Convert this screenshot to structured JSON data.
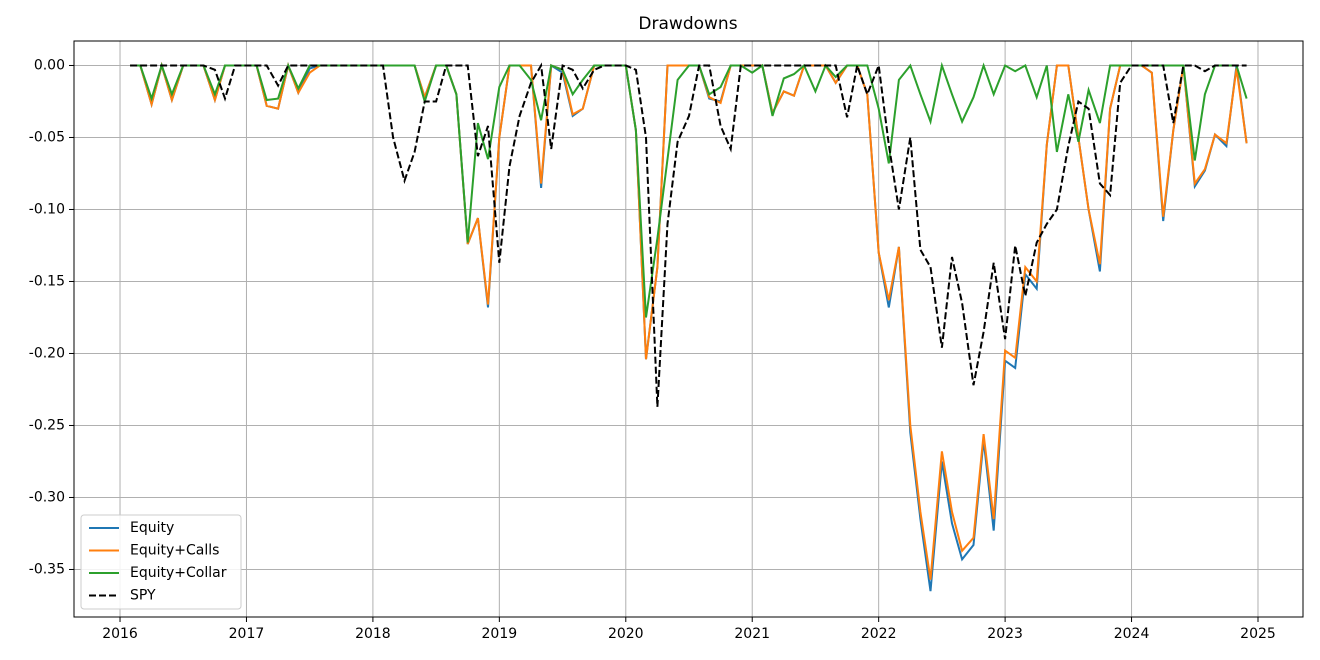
{
  "chart_data": {
    "type": "line",
    "title": "Drawdowns",
    "x": [
      2016.08,
      2016.16,
      2016.25,
      2016.33,
      2016.41,
      2016.5,
      2016.58,
      2016.66,
      2016.75,
      2016.83,
      2016.91,
      2017,
      2017.08,
      2017.16,
      2017.25,
      2017.33,
      2017.41,
      2017.5,
      2017.58,
      2017.66,
      2017.75,
      2017.83,
      2017.91,
      2018,
      2018.08,
      2018.16,
      2018.25,
      2018.33,
      2018.41,
      2018.5,
      2018.58,
      2018.66,
      2018.75,
      2018.83,
      2018.91,
      2019,
      2019.08,
      2019.16,
      2019.25,
      2019.33,
      2019.41,
      2019.5,
      2019.58,
      2019.66,
      2019.75,
      2019.83,
      2019.91,
      2020,
      2020.08,
      2020.16,
      2020.25,
      2020.33,
      2020.41,
      2020.5,
      2020.58,
      2020.66,
      2020.75,
      2020.83,
      2020.91,
      2021,
      2021.08,
      2021.16,
      2021.25,
      2021.33,
      2021.41,
      2021.5,
      2021.58,
      2021.66,
      2021.75,
      2021.83,
      2021.91,
      2022,
      2022.08,
      2022.16,
      2022.25,
      2022.33,
      2022.41,
      2022.5,
      2022.58,
      2022.66,
      2022.75,
      2022.83,
      2022.91,
      2023,
      2023.08,
      2023.16,
      2023.25,
      2023.33,
      2023.41,
      2023.5,
      2023.58,
      2023.66,
      2023.75,
      2023.83,
      2023.91,
      2024,
      2024.08,
      2024.16,
      2024.25,
      2024.33,
      2024.41,
      2024.5,
      2024.58,
      2024.66,
      2024.75,
      2024.83,
      2024.91
    ],
    "series": [
      {
        "name": "Equity",
        "color": "#1f77b4",
        "line_style": "solid",
        "values": [
          0,
          0,
          -0.027,
          0,
          -0.024,
          0,
          0,
          0,
          -0.024,
          0,
          0,
          0,
          0,
          -0.028,
          -0.03,
          0,
          -0.019,
          -0.002,
          0,
          0,
          0,
          0,
          0,
          0,
          0,
          0,
          0,
          0,
          -0.022,
          0,
          0,
          -0.02,
          -0.124,
          -0.106,
          -0.168,
          -0.05,
          0,
          0,
          0,
          -0.085,
          0,
          -0.005,
          -0.035,
          -0.03,
          0,
          0,
          0,
          0,
          -0.045,
          -0.204,
          -0.14,
          0,
          0,
          0,
          0,
          -0.023,
          -0.025,
          0,
          0,
          0,
          0,
          -0.033,
          -0.018,
          -0.021,
          0,
          0,
          0,
          -0.012,
          0,
          0,
          -0.02,
          -0.13,
          -0.168,
          -0.126,
          -0.255,
          -0.315,
          -0.365,
          -0.275,
          -0.318,
          -0.343,
          -0.333,
          -0.26,
          -0.323,
          -0.205,
          -0.21,
          -0.145,
          -0.155,
          -0.055,
          0,
          0,
          -0.05,
          -0.1,
          -0.143,
          -0.03,
          0,
          0,
          0,
          -0.005,
          -0.108,
          -0.045,
          0,
          -0.084,
          -0.073,
          -0.048,
          -0.056,
          0,
          -0.054
        ]
      },
      {
        "name": "Equity+Calls",
        "color": "#ff7f0e",
        "line_style": "solid",
        "values": [
          0,
          0,
          -0.027,
          0,
          -0.024,
          0,
          0,
          0,
          -0.024,
          0,
          0,
          0,
          0,
          -0.028,
          -0.03,
          0,
          -0.019,
          -0.005,
          0,
          0,
          0,
          0,
          0,
          0,
          0,
          0,
          0,
          0,
          -0.022,
          0,
          0,
          -0.02,
          -0.124,
          -0.106,
          -0.166,
          -0.05,
          0,
          0,
          0,
          -0.082,
          0,
          -0.003,
          -0.034,
          -0.03,
          0,
          0,
          0,
          0,
          -0.045,
          -0.204,
          -0.14,
          0,
          0,
          0,
          0,
          -0.022,
          -0.026,
          0,
          0,
          0,
          0,
          -0.033,
          -0.018,
          -0.021,
          0,
          0,
          0,
          -0.012,
          0,
          0,
          -0.02,
          -0.13,
          -0.163,
          -0.126,
          -0.25,
          -0.31,
          -0.357,
          -0.268,
          -0.31,
          -0.337,
          -0.328,
          -0.256,
          -0.315,
          -0.198,
          -0.203,
          -0.14,
          -0.15,
          -0.055,
          0,
          0,
          -0.05,
          -0.1,
          -0.138,
          -0.03,
          0,
          0,
          0,
          -0.005,
          -0.105,
          -0.045,
          0,
          -0.082,
          -0.072,
          -0.048,
          -0.054,
          -0.002,
          -0.054
        ]
      },
      {
        "name": "Equity+Collar",
        "color": "#2ca02c",
        "line_style": "solid",
        "values": [
          0,
          0,
          -0.023,
          0,
          -0.02,
          0,
          0,
          0,
          -0.02,
          0,
          0,
          0,
          0,
          -0.024,
          -0.023,
          0,
          -0.016,
          0,
          0,
          0,
          0,
          0,
          0,
          0,
          0,
          0,
          0,
          0,
          -0.025,
          0,
          0,
          -0.02,
          -0.123,
          -0.04,
          -0.065,
          -0.015,
          0,
          0,
          -0.01,
          -0.038,
          0,
          -0.003,
          -0.02,
          -0.01,
          0,
          0,
          0,
          0,
          -0.045,
          -0.175,
          -0.12,
          -0.065,
          -0.01,
          0,
          0,
          -0.02,
          -0.015,
          0,
          0,
          -0.005,
          0,
          -0.035,
          -0.009,
          -0.006,
          0,
          -0.018,
          0,
          -0.008,
          0,
          0,
          0,
          -0.03,
          -0.068,
          -0.01,
          0,
          -0.02,
          -0.039,
          0,
          -0.02,
          -0.039,
          -0.022,
          0,
          -0.02,
          0,
          -0.004,
          0,
          -0.022,
          0,
          -0.06,
          -0.02,
          -0.053,
          -0.017,
          -0.04,
          0,
          0,
          0,
          0,
          0,
          0,
          0,
          0,
          -0.066,
          -0.02,
          0,
          0,
          0,
          -0.023
        ]
      },
      {
        "name": "SPY",
        "color": "#000000",
        "line_style": "dashed",
        "values": [
          0,
          0,
          0,
          0,
          0,
          0,
          0,
          0,
          -0.003,
          -0.023,
          0,
          0,
          0,
          0,
          -0.014,
          0,
          0,
          0,
          0,
          0,
          0,
          0,
          0,
          0,
          0,
          -0.05,
          -0.08,
          -0.06,
          -0.025,
          -0.025,
          0,
          0,
          0,
          -0.063,
          -0.042,
          -0.137,
          -0.07,
          -0.035,
          -0.012,
          0,
          -0.058,
          0,
          -0.003,
          -0.016,
          -0.003,
          0,
          0,
          0,
          -0.003,
          -0.05,
          -0.237,
          -0.11,
          -0.053,
          -0.035,
          0,
          0,
          -0.042,
          -0.058,
          0,
          0,
          0,
          0,
          0,
          0,
          0,
          0,
          0,
          0,
          -0.036,
          0,
          -0.02,
          0,
          -0.055,
          -0.1,
          -0.05,
          -0.128,
          -0.14,
          -0.196,
          -0.133,
          -0.165,
          -0.222,
          -0.185,
          -0.137,
          -0.19,
          -0.125,
          -0.16,
          -0.123,
          -0.11,
          -0.1,
          -0.056,
          -0.025,
          -0.03,
          -0.082,
          -0.09,
          -0.012,
          0,
          0,
          0,
          0,
          -0.04,
          0,
          0,
          -0.004,
          0,
          0,
          0,
          0
        ]
      }
    ],
    "xlim": [
      2015.636,
      2025.356
    ],
    "xticks": [
      2016,
      2017,
      2018,
      2019,
      2020,
      2021,
      2022,
      2023,
      2024,
      2025
    ],
    "ylim": [
      -0.383,
      0.017
    ],
    "yticks": [
      {
        "value": 0,
        "label": "0.00"
      },
      {
        "value": -0.05,
        "label": "-0.05"
      },
      {
        "value": -0.1,
        "label": "-0.10"
      },
      {
        "value": -0.15,
        "label": "-0.15"
      },
      {
        "value": -0.2,
        "label": "-0.20"
      },
      {
        "value": -0.25,
        "label": "-0.25"
      },
      {
        "value": -0.3,
        "label": "-0.30"
      },
      {
        "value": -0.35,
        "label": "-0.35"
      }
    ],
    "grid": true,
    "legend": "lower left"
  }
}
